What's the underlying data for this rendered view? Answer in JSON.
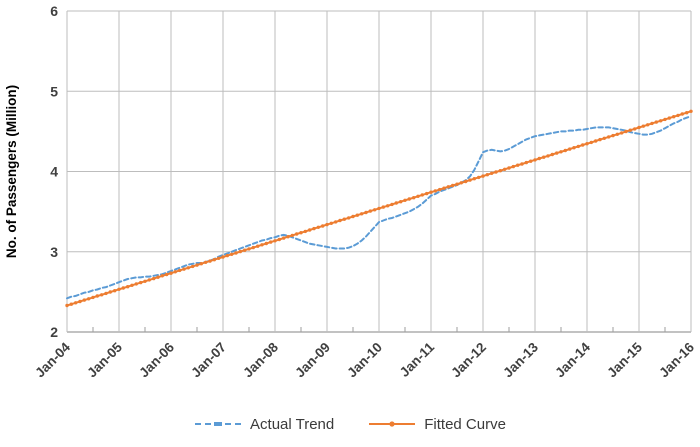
{
  "chart_data": {
    "type": "line",
    "title": "",
    "xlabel": "",
    "ylabel": "No. of Passengers (Million)",
    "ylim": [
      2,
      6
    ],
    "y_ticks": [
      2,
      3,
      4,
      5,
      6
    ],
    "x_tick_labels": [
      "Jan-04",
      "Jan-05",
      "Jan-06",
      "Jan-07",
      "Jan-08",
      "Jan-09",
      "Jan-10",
      "Jan-11",
      "Jan-12",
      "Jan-13",
      "Jan-14",
      "Jan-15",
      "Jan-16"
    ],
    "x_range_months": [
      0,
      144
    ],
    "x_major_tick_interval_months": 12,
    "x_minor_tick_interval_months": 6,
    "grid": true,
    "legend_position": "bottom",
    "series": [
      {
        "name": "Actual Trend",
        "color": "#5B9BD5",
        "style": "dashed",
        "marker": "dash",
        "values": [
          2.42,
          2.44,
          2.45,
          2.47,
          2.49,
          2.5,
          2.52,
          2.53,
          2.55,
          2.56,
          2.58,
          2.6,
          2.62,
          2.64,
          2.66,
          2.67,
          2.68,
          2.68,
          2.69,
          2.69,
          2.7,
          2.71,
          2.72,
          2.74,
          2.76,
          2.78,
          2.8,
          2.82,
          2.84,
          2.85,
          2.86,
          2.86,
          2.87,
          2.89,
          2.91,
          2.94,
          2.96,
          2.98,
          3.0,
          3.02,
          3.04,
          3.06,
          3.08,
          3.1,
          3.12,
          3.14,
          3.15,
          3.17,
          3.18,
          3.2,
          3.21,
          3.2,
          3.18,
          3.16,
          3.14,
          3.12,
          3.1,
          3.09,
          3.08,
          3.07,
          3.06,
          3.05,
          3.04,
          3.04,
          3.04,
          3.05,
          3.07,
          3.1,
          3.14,
          3.19,
          3.25,
          3.31,
          3.37,
          3.39,
          3.41,
          3.42,
          3.44,
          3.46,
          3.48,
          3.5,
          3.53,
          3.56,
          3.6,
          3.65,
          3.7,
          3.72,
          3.75,
          3.77,
          3.79,
          3.81,
          3.83,
          3.86,
          3.89,
          3.94,
          4.02,
          4.13,
          4.24,
          4.26,
          4.27,
          4.26,
          4.25,
          4.26,
          4.28,
          4.31,
          4.34,
          4.37,
          4.4,
          4.42,
          4.44,
          4.45,
          4.46,
          4.47,
          4.48,
          4.49,
          4.5,
          4.5,
          4.51,
          4.51,
          4.52,
          4.52,
          4.53,
          4.54,
          4.55,
          4.55,
          4.55,
          4.55,
          4.54,
          4.53,
          4.52,
          4.51,
          4.49,
          4.48,
          4.47,
          4.46,
          4.46,
          4.47,
          4.49,
          4.51,
          4.54,
          4.57,
          4.6,
          4.62,
          4.65,
          4.67,
          4.69
        ]
      },
      {
        "name": "Fitted Curve",
        "color": "#ED7D31",
        "style": "solid",
        "marker": "circle",
        "values": [
          2.33,
          2.347,
          2.364,
          2.38,
          2.397,
          2.414,
          2.431,
          2.448,
          2.464,
          2.481,
          2.498,
          2.515,
          2.532,
          2.548,
          2.565,
          2.582,
          2.599,
          2.616,
          2.632,
          2.649,
          2.666,
          2.683,
          2.7,
          2.716,
          2.733,
          2.75,
          2.767,
          2.784,
          2.8,
          2.817,
          2.834,
          2.851,
          2.868,
          2.884,
          2.901,
          2.918,
          2.935,
          2.952,
          2.968,
          2.985,
          3.002,
          3.019,
          3.036,
          3.052,
          3.069,
          3.086,
          3.103,
          3.12,
          3.137,
          3.153,
          3.17,
          3.187,
          3.204,
          3.221,
          3.237,
          3.254,
          3.271,
          3.288,
          3.305,
          3.321,
          3.338,
          3.355,
          3.372,
          3.389,
          3.405,
          3.422,
          3.439,
          3.456,
          3.473,
          3.489,
          3.506,
          3.523,
          3.54,
          3.557,
          3.573,
          3.59,
          3.607,
          3.624,
          3.641,
          3.657,
          3.674,
          3.691,
          3.708,
          3.725,
          3.742,
          3.758,
          3.775,
          3.792,
          3.809,
          3.826,
          3.842,
          3.859,
          3.876,
          3.893,
          3.91,
          3.926,
          3.943,
          3.96,
          3.977,
          3.994,
          4.01,
          4.027,
          4.044,
          4.061,
          4.078,
          4.094,
          4.111,
          4.128,
          4.145,
          4.162,
          4.178,
          4.195,
          4.212,
          4.229,
          4.246,
          4.262,
          4.279,
          4.296,
          4.313,
          4.33,
          4.347,
          4.363,
          4.38,
          4.397,
          4.414,
          4.431,
          4.447,
          4.464,
          4.481,
          4.498,
          4.515,
          4.531,
          4.548,
          4.565,
          4.582,
          4.599,
          4.615,
          4.632,
          4.649,
          4.666,
          4.683,
          4.699,
          4.716,
          4.733,
          4.75
        ]
      }
    ]
  },
  "legend": {
    "items": [
      {
        "label": "Actual Trend"
      },
      {
        "label": "Fitted Curve"
      }
    ]
  },
  "colors": {
    "actual": "#5B9BD5",
    "fitted": "#ED7D31",
    "gridline": "#BDBDBD",
    "axis_line": "#9E9E9E",
    "tick_text": "#404040",
    "axis_title_text": "#000000",
    "background": "#FFFFFF"
  }
}
